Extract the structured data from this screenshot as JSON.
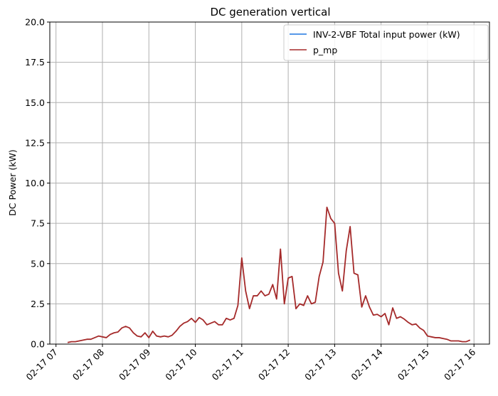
{
  "chart_data": {
    "type": "line",
    "title": "DC generation vertical",
    "xlabel": "",
    "ylabel": "DC Power (kW)",
    "ylim": [
      0,
      20
    ],
    "yticks": [
      "0.0",
      "2.5",
      "5.0",
      "7.5",
      "10.0",
      "12.5",
      "15.0",
      "17.5",
      "20.0"
    ],
    "ytick_values": [
      0,
      2.5,
      5,
      7.5,
      10,
      12.5,
      15,
      17.5,
      20
    ],
    "xlim": [
      "02-17 06:52",
      "02-17 16:20"
    ],
    "xtick_values": [
      "02-17 07:00",
      "02-17 08:00",
      "02-17 09:00",
      "02-17 10:00",
      "02-17 11:00",
      "02-17 12:00",
      "02-17 13:00",
      "02-17 14:00",
      "02-17 15:00",
      "02-17 16:00"
    ],
    "xticks": [
      "02-17 07",
      "02-17 08",
      "02-17 09",
      "02-17 10",
      "02-17 11",
      "02-17 12",
      "02-17 13",
      "02-17 14",
      "02-17 15",
      "02-17 16"
    ],
    "grid": true,
    "legend": "top-right",
    "colors": {
      "series_1": "#1f77e0",
      "series_2": "#a52a2a",
      "grid": "#b0b0b0"
    },
    "series": [
      {
        "name": "INV-2-VBF Total input power (kW)",
        "x": [],
        "values": []
      },
      {
        "name": "p_mp",
        "x": [
          "02-17 07:15",
          "02-17 07:20",
          "02-17 07:25",
          "02-17 07:30",
          "02-17 07:35",
          "02-17 07:40",
          "02-17 07:45",
          "02-17 07:50",
          "02-17 07:55",
          "02-17 08:00",
          "02-17 08:05",
          "02-17 08:10",
          "02-17 08:15",
          "02-17 08:20",
          "02-17 08:25",
          "02-17 08:30",
          "02-17 08:35",
          "02-17 08:40",
          "02-17 08:45",
          "02-17 08:50",
          "02-17 08:55",
          "02-17 09:00",
          "02-17 09:05",
          "02-17 09:10",
          "02-17 09:15",
          "02-17 09:20",
          "02-17 09:25",
          "02-17 09:30",
          "02-17 09:35",
          "02-17 09:40",
          "02-17 09:45",
          "02-17 09:50",
          "02-17 09:55",
          "02-17 10:00",
          "02-17 10:05",
          "02-17 10:10",
          "02-17 10:15",
          "02-17 10:20",
          "02-17 10:25",
          "02-17 10:30",
          "02-17 10:35",
          "02-17 10:40",
          "02-17 10:45",
          "02-17 10:50",
          "02-17 10:55",
          "02-17 11:00",
          "02-17 11:05",
          "02-17 11:10",
          "02-17 11:15",
          "02-17 11:20",
          "02-17 11:25",
          "02-17 11:30",
          "02-17 11:35",
          "02-17 11:40",
          "02-17 11:45",
          "02-17 11:50",
          "02-17 11:55",
          "02-17 12:00",
          "02-17 12:05",
          "02-17 12:10",
          "02-17 12:15",
          "02-17 12:20",
          "02-17 12:25",
          "02-17 12:30",
          "02-17 12:35",
          "02-17 12:40",
          "02-17 12:45",
          "02-17 12:50",
          "02-17 12:55",
          "02-17 13:00",
          "02-17 13:05",
          "02-17 13:10",
          "02-17 13:15",
          "02-17 13:20",
          "02-17 13:25",
          "02-17 13:30",
          "02-17 13:35",
          "02-17 13:40",
          "02-17 13:45",
          "02-17 13:50",
          "02-17 13:55",
          "02-17 14:00",
          "02-17 14:05",
          "02-17 14:10",
          "02-17 14:15",
          "02-17 14:20",
          "02-17 14:25",
          "02-17 14:30",
          "02-17 14:35",
          "02-17 14:40",
          "02-17 14:45",
          "02-17 14:50",
          "02-17 14:55",
          "02-17 15:00",
          "02-17 15:05",
          "02-17 15:10",
          "02-17 15:15",
          "02-17 15:20",
          "02-17 15:25",
          "02-17 15:30",
          "02-17 15:35",
          "02-17 15:40",
          "02-17 15:45",
          "02-17 15:50",
          "02-17 15:55"
        ],
        "values": [
          0.1,
          0.15,
          0.15,
          0.2,
          0.25,
          0.3,
          0.3,
          0.4,
          0.5,
          0.45,
          0.4,
          0.6,
          0.7,
          0.75,
          1.0,
          1.1,
          1.0,
          0.7,
          0.5,
          0.45,
          0.7,
          0.4,
          0.8,
          0.5,
          0.45,
          0.5,
          0.45,
          0.55,
          0.8,
          1.1,
          1.3,
          1.4,
          1.6,
          1.35,
          1.65,
          1.5,
          1.2,
          1.3,
          1.4,
          1.2,
          1.2,
          1.6,
          1.5,
          1.6,
          2.4,
          5.35,
          3.3,
          2.2,
          3.0,
          3.0,
          3.3,
          3.0,
          3.1,
          3.7,
          2.8,
          5.9,
          2.5,
          4.1,
          4.2,
          2.2,
          2.5,
          2.4,
          3.0,
          2.5,
          2.6,
          4.2,
          5.1,
          8.5,
          7.8,
          7.5,
          4.4,
          3.3,
          5.8,
          7.3,
          4.4,
          4.3,
          2.3,
          3.0,
          2.3,
          1.8,
          1.85,
          1.7,
          1.9,
          1.2,
          2.25,
          1.6,
          1.7,
          1.55,
          1.35,
          1.2,
          1.25,
          1.0,
          0.85,
          0.5,
          0.45,
          0.4,
          0.4,
          0.35,
          0.3,
          0.2,
          0.2,
          0.2,
          0.15,
          0.15,
          0.25
        ]
      }
    ]
  }
}
